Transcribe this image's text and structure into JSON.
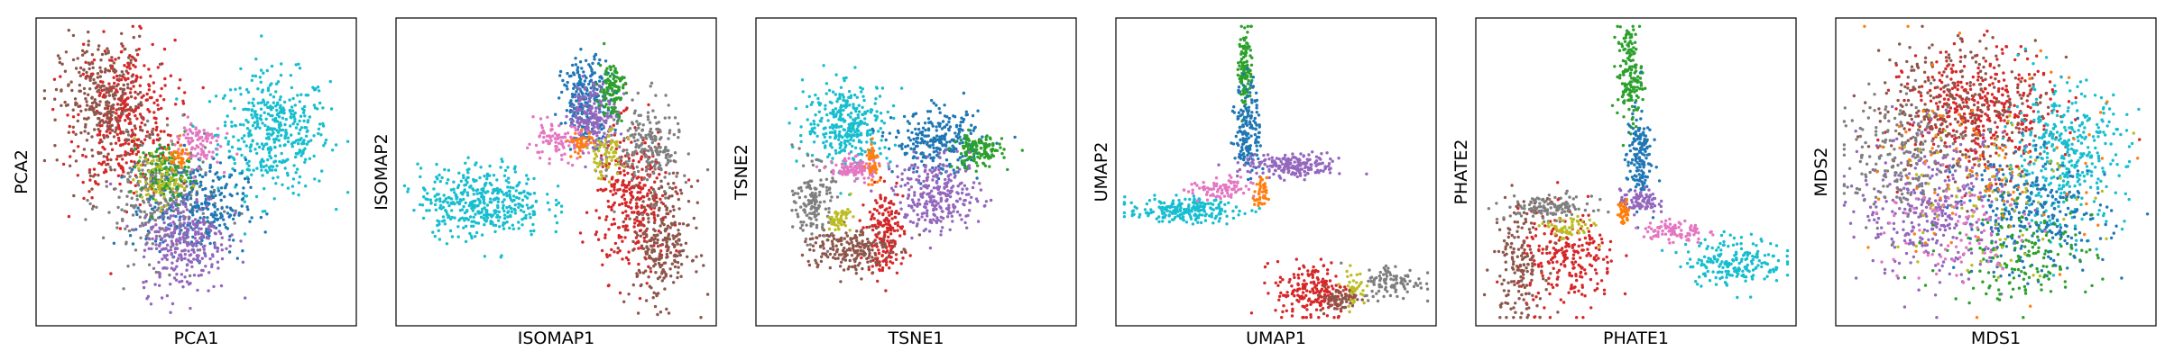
{
  "chart_data": [
    {
      "type": "scatter",
      "xlabel": "PCA1",
      "ylabel": "PCA2",
      "grid": false,
      "ticks": false,
      "clusters": [
        {
          "color": "#17becf",
          "cx": 0.75,
          "cy": 0.63,
          "sx": 0.09,
          "sy": 0.1,
          "n": 420
        },
        {
          "color": "#d62728",
          "cx": 0.27,
          "cy": 0.68,
          "sx": 0.08,
          "sy": 0.13,
          "n": 380
        },
        {
          "color": "#8c564b",
          "cx": 0.2,
          "cy": 0.73,
          "sx": 0.07,
          "sy": 0.11,
          "n": 300
        },
        {
          "color": "#7f7f7f",
          "cx": 0.38,
          "cy": 0.4,
          "sx": 0.09,
          "sy": 0.1,
          "n": 260
        },
        {
          "color": "#1f77b4",
          "cx": 0.5,
          "cy": 0.38,
          "sx": 0.08,
          "sy": 0.08,
          "n": 300
        },
        {
          "color": "#9467bd",
          "cx": 0.46,
          "cy": 0.27,
          "sx": 0.07,
          "sy": 0.09,
          "n": 300
        },
        {
          "color": "#2ca02c",
          "cx": 0.4,
          "cy": 0.5,
          "sx": 0.04,
          "sy": 0.05,
          "n": 120
        },
        {
          "color": "#bcbd22",
          "cx": 0.38,
          "cy": 0.47,
          "sx": 0.04,
          "sy": 0.04,
          "n": 80
        },
        {
          "color": "#e377c2",
          "cx": 0.5,
          "cy": 0.6,
          "sx": 0.04,
          "sy": 0.04,
          "n": 90
        },
        {
          "color": "#ff7f0e",
          "cx": 0.44,
          "cy": 0.55,
          "sx": 0.02,
          "sy": 0.02,
          "n": 40
        }
      ]
    },
    {
      "type": "scatter",
      "xlabel": "ISOMAP1",
      "ylabel": "ISOMAP2",
      "grid": false,
      "ticks": false,
      "clusters": [
        {
          "color": "#17becf",
          "cx": 0.26,
          "cy": 0.4,
          "sx": 0.1,
          "sy": 0.06,
          "n": 420
        },
        {
          "color": "#d62728",
          "cx": 0.75,
          "cy": 0.4,
          "sx": 0.06,
          "sy": 0.12,
          "n": 320
        },
        {
          "color": "#8c564b",
          "cx": 0.84,
          "cy": 0.26,
          "sx": 0.05,
          "sy": 0.1,
          "n": 260
        },
        {
          "color": "#7f7f7f",
          "cx": 0.8,
          "cy": 0.58,
          "sx": 0.05,
          "sy": 0.08,
          "n": 200
        },
        {
          "color": "#1f77b4",
          "cx": 0.6,
          "cy": 0.74,
          "sx": 0.04,
          "sy": 0.07,
          "n": 240
        },
        {
          "color": "#9467bd",
          "cx": 0.62,
          "cy": 0.68,
          "sx": 0.04,
          "sy": 0.06,
          "n": 200
        },
        {
          "color": "#2ca02c",
          "cx": 0.68,
          "cy": 0.78,
          "sx": 0.02,
          "sy": 0.05,
          "n": 110
        },
        {
          "color": "#bcbd22",
          "cx": 0.66,
          "cy": 0.56,
          "sx": 0.03,
          "sy": 0.04,
          "n": 70
        },
        {
          "color": "#e377c2",
          "cx": 0.5,
          "cy": 0.6,
          "sx": 0.05,
          "sy": 0.03,
          "n": 90
        },
        {
          "color": "#ff7f0e",
          "cx": 0.58,
          "cy": 0.6,
          "sx": 0.02,
          "sy": 0.02,
          "n": 40
        }
      ]
    },
    {
      "type": "scatter",
      "xlabel": "TSNE1",
      "ylabel": "TSNE2",
      "grid": false,
      "ticks": false,
      "clusters": [
        {
          "color": "#17becf",
          "cx": 0.28,
          "cy": 0.66,
          "sx": 0.07,
          "sy": 0.07,
          "n": 320
        },
        {
          "color": "#1f77b4",
          "cx": 0.57,
          "cy": 0.6,
          "sx": 0.07,
          "sy": 0.05,
          "n": 260
        },
        {
          "color": "#2ca02c",
          "cx": 0.7,
          "cy": 0.57,
          "sx": 0.04,
          "sy": 0.03,
          "n": 140
        },
        {
          "color": "#9467bd",
          "cx": 0.57,
          "cy": 0.42,
          "sx": 0.07,
          "sy": 0.06,
          "n": 280
        },
        {
          "color": "#d62728",
          "cx": 0.4,
          "cy": 0.3,
          "sx": 0.03,
          "sy": 0.07,
          "n": 180
        },
        {
          "color": "#8c564b",
          "cx": 0.28,
          "cy": 0.24,
          "sx": 0.07,
          "sy": 0.04,
          "n": 200
        },
        {
          "color": "#7f7f7f",
          "cx": 0.17,
          "cy": 0.4,
          "sx": 0.03,
          "sy": 0.06,
          "n": 150
        },
        {
          "color": "#e377c2",
          "cx": 0.3,
          "cy": 0.51,
          "sx": 0.04,
          "sy": 0.02,
          "n": 100
        },
        {
          "color": "#bcbd22",
          "cx": 0.25,
          "cy": 0.34,
          "sx": 0.02,
          "sy": 0.02,
          "n": 50
        },
        {
          "color": "#ff7f0e",
          "cx": 0.36,
          "cy": 0.54,
          "sx": 0.01,
          "sy": 0.03,
          "n": 50
        }
      ]
    },
    {
      "type": "scatter",
      "xlabel": "UMAP1",
      "ylabel": "UMAP2",
      "grid": false,
      "ticks": false,
      "clusters": [
        {
          "color": "#17becf",
          "cx": 0.2,
          "cy": 0.37,
          "sx": 0.09,
          "sy": 0.02,
          "n": 220
        },
        {
          "color": "#2ca02c",
          "cx": 0.4,
          "cy": 0.85,
          "sx": 0.01,
          "sy": 0.07,
          "n": 120
        },
        {
          "color": "#1f77b4",
          "cx": 0.41,
          "cy": 0.65,
          "sx": 0.02,
          "sy": 0.08,
          "n": 160
        },
        {
          "color": "#9467bd",
          "cx": 0.55,
          "cy": 0.52,
          "sx": 0.08,
          "sy": 0.02,
          "n": 200
        },
        {
          "color": "#e377c2",
          "cx": 0.32,
          "cy": 0.44,
          "sx": 0.05,
          "sy": 0.02,
          "n": 90
        },
        {
          "color": "#ff7f0e",
          "cx": 0.45,
          "cy": 0.42,
          "sx": 0.01,
          "sy": 0.03,
          "n": 40
        },
        {
          "color": "#d62728",
          "cx": 0.62,
          "cy": 0.1,
          "sx": 0.06,
          "sy": 0.05,
          "n": 200
        },
        {
          "color": "#7f7f7f",
          "cx": 0.88,
          "cy": 0.13,
          "sx": 0.05,
          "sy": 0.03,
          "n": 100
        },
        {
          "color": "#bcbd22",
          "cx": 0.75,
          "cy": 0.11,
          "sx": 0.02,
          "sy": 0.03,
          "n": 40
        },
        {
          "color": "#8c564b",
          "cx": 0.7,
          "cy": 0.07,
          "sx": 0.03,
          "sy": 0.02,
          "n": 60
        }
      ]
    },
    {
      "type": "scatter",
      "xlabel": "PHATE1",
      "ylabel": "PHATE2",
      "grid": false,
      "ticks": false,
      "clusters": [
        {
          "color": "#2ca02c",
          "cx": 0.48,
          "cy": 0.83,
          "sx": 0.02,
          "sy": 0.08,
          "n": 160
        },
        {
          "color": "#1f77b4",
          "cx": 0.51,
          "cy": 0.55,
          "sx": 0.02,
          "sy": 0.08,
          "n": 160
        },
        {
          "color": "#9467bd",
          "cx": 0.51,
          "cy": 0.4,
          "sx": 0.03,
          "sy": 0.02,
          "n": 90
        },
        {
          "color": "#17becf",
          "cx": 0.82,
          "cy": 0.2,
          "sx": 0.08,
          "sy": 0.04,
          "n": 200
        },
        {
          "color": "#e377c2",
          "cx": 0.62,
          "cy": 0.3,
          "sx": 0.05,
          "sy": 0.02,
          "n": 90
        },
        {
          "color": "#d62728",
          "cx": 0.28,
          "cy": 0.2,
          "sx": 0.08,
          "sy": 0.08,
          "n": 240
        },
        {
          "color": "#8c564b",
          "cx": 0.12,
          "cy": 0.2,
          "sx": 0.04,
          "sy": 0.1,
          "n": 160
        },
        {
          "color": "#7f7f7f",
          "cx": 0.22,
          "cy": 0.38,
          "sx": 0.07,
          "sy": 0.02,
          "n": 120
        },
        {
          "color": "#bcbd22",
          "cx": 0.28,
          "cy": 0.31,
          "sx": 0.04,
          "sy": 0.02,
          "n": 60
        },
        {
          "color": "#ff7f0e",
          "cx": 0.46,
          "cy": 0.36,
          "sx": 0.01,
          "sy": 0.02,
          "n": 40
        }
      ]
    },
    {
      "type": "scatter",
      "xlabel": "MDS1",
      "ylabel": "MDS2",
      "grid": false,
      "ticks": false,
      "clusters": [
        {
          "color": "#d62728",
          "cx": 0.45,
          "cy": 0.7,
          "sx": 0.12,
          "sy": 0.1,
          "n": 420
        },
        {
          "color": "#8c564b",
          "cx": 0.38,
          "cy": 0.72,
          "sx": 0.14,
          "sy": 0.12,
          "n": 300
        },
        {
          "color": "#17becf",
          "cx": 0.72,
          "cy": 0.55,
          "sx": 0.1,
          "sy": 0.12,
          "n": 380
        },
        {
          "color": "#9467bd",
          "cx": 0.3,
          "cy": 0.38,
          "sx": 0.12,
          "sy": 0.12,
          "n": 360
        },
        {
          "color": "#1f77b4",
          "cx": 0.62,
          "cy": 0.35,
          "sx": 0.12,
          "sy": 0.1,
          "n": 300
        },
        {
          "color": "#7f7f7f",
          "cx": 0.2,
          "cy": 0.55,
          "sx": 0.1,
          "sy": 0.1,
          "n": 200
        },
        {
          "color": "#2ca02c",
          "cx": 0.58,
          "cy": 0.22,
          "sx": 0.12,
          "sy": 0.08,
          "n": 160
        },
        {
          "color": "#bcbd22",
          "cx": 0.45,
          "cy": 0.45,
          "sx": 0.15,
          "sy": 0.15,
          "n": 90
        },
        {
          "color": "#e377c2",
          "cx": 0.35,
          "cy": 0.3,
          "sx": 0.12,
          "sy": 0.1,
          "n": 90
        },
        {
          "color": "#ff7f0e",
          "cx": 0.5,
          "cy": 0.5,
          "sx": 0.18,
          "sy": 0.18,
          "n": 90
        }
      ]
    }
  ]
}
